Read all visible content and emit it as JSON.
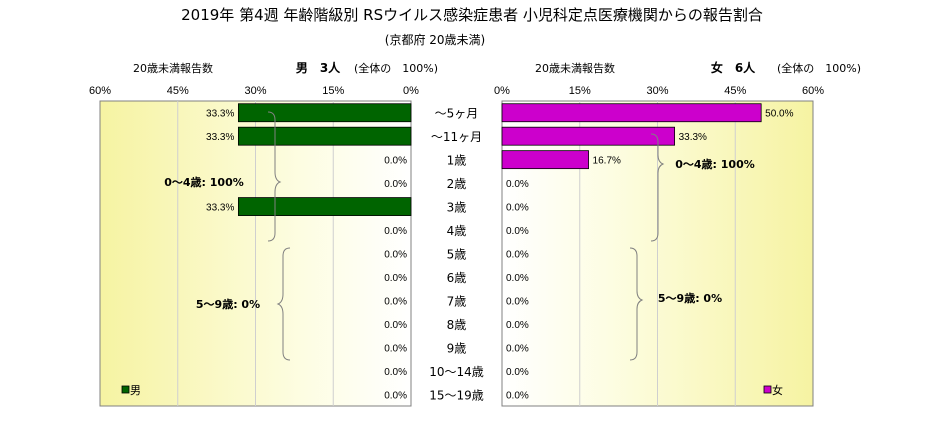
{
  "chart_data": {
    "type": "bar",
    "title": "2019年 第4週 年齢階級別 RSウイルス感染症患者 小児科定点医療機関からの報告割合",
    "subtitle": "(京都府 20歳未満)",
    "categories": [
      "～5ヶ月",
      "～11ヶ月",
      "1歳",
      "2歳",
      "3歳",
      "4歳",
      "5歳",
      "6歳",
      "7歳",
      "8歳",
      "9歳",
      "10～14歳",
      "15～19歳"
    ],
    "xlim": [
      0,
      60
    ],
    "ticks": [
      "60%",
      "45%",
      "30%",
      "15%",
      "0%",
      "0%",
      "15%",
      "30%",
      "45%",
      "60%"
    ],
    "male": {
      "header_left": "20歳未満報告数",
      "header_right": "男　3人",
      "header_note": "(全体の　100%)",
      "legend": "男",
      "color": "#006400",
      "values": [
        33.3,
        33.3,
        0,
        0,
        33.3,
        0,
        0,
        0,
        0,
        0,
        0,
        0,
        0
      ],
      "labels": [
        "33.3%",
        "33.3%",
        "0.0%",
        "0.0%",
        "33.3%",
        "0.0%",
        "0.0%",
        "0.0%",
        "0.0%",
        "0.0%",
        "0.0%",
        "0.0%",
        "0.0%"
      ],
      "group_0_4": "0～4歳: 100%",
      "group_5_9": "5～9歳: 0%"
    },
    "female": {
      "header_left": "20歳未満報告数",
      "header_right": "女　6人",
      "header_note": "(全体の　100%)",
      "legend": "女",
      "color": "#cc00cc",
      "values": [
        50.0,
        33.3,
        16.7,
        0,
        0,
        0,
        0,
        0,
        0,
        0,
        0,
        0,
        0
      ],
      "labels": [
        "50.0%",
        "33.3%",
        "16.7%",
        "0.0%",
        "0.0%",
        "0.0%",
        "0.0%",
        "0.0%",
        "0.0%",
        "0.0%",
        "0.0%",
        "0.0%",
        "0.0%"
      ],
      "group_0_4": "0～4歳: 100%",
      "group_5_9": "5～9歳: 0%"
    }
  }
}
